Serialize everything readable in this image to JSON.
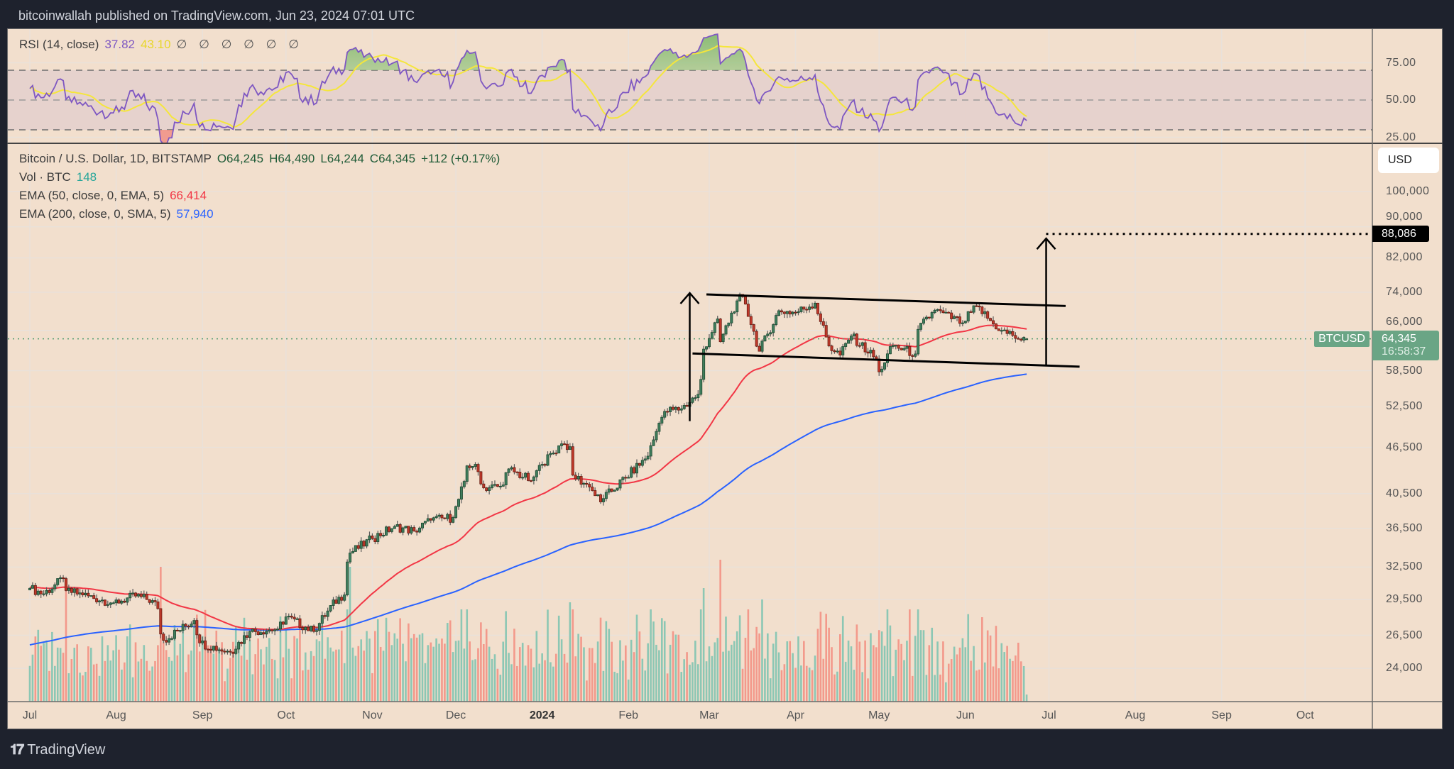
{
  "header": {
    "title": "bitcoinwallah published on TradingView.com, Jun 23, 2024 07:01 UTC"
  },
  "rsi": {
    "label": "RSI (14, close)",
    "value": "37.82",
    "ma_value": "43.10",
    "placeholders": "∅ ∅ ∅ ∅ ∅ ∅",
    "ticks": [
      {
        "value": 75,
        "label": "75.00"
      },
      {
        "value": 50,
        "label": "50.00"
      },
      {
        "value": 25,
        "label": "25.00"
      }
    ],
    "bands": {
      "upper": 70,
      "middle": 50,
      "lower": 30
    },
    "colors": {
      "line": "#7e57c2",
      "ma": "#f5e63b",
      "band": "#e6d2cd",
      "overbought_fill": "#9cc38c",
      "oversold_fill": "#f08a80"
    }
  },
  "legend": {
    "symbol": "Bitcoin / U.S. Dollar, 1D, BITSTAMP",
    "open": "O64,245",
    "high": "H64,490",
    "low": "L64,244",
    "close": "C64,345",
    "change": "+112 (+0.17%)",
    "vol_label": "Vol · BTC",
    "vol_value": "148",
    "ema50_label": "EMA (50, close, 0, EMA, 5)",
    "ema50_value": "66,414",
    "ema200_label": "EMA (200, close, 0, SMA, 5)",
    "ema200_value": "57,940"
  },
  "price_axis": {
    "currency": "USD",
    "ticks": [
      {
        "value": 100000,
        "label": "100,000"
      },
      {
        "value": 90000,
        "label": "90,000"
      },
      {
        "value": 82000,
        "label": "82,000"
      },
      {
        "value": 74000,
        "label": "74,000"
      },
      {
        "value": 66000,
        "label": "66,000"
      },
      {
        "value": 58500,
        "label": "58,500"
      },
      {
        "value": 52500,
        "label": "52,500"
      },
      {
        "value": 46500,
        "label": "46,500"
      },
      {
        "value": 40500,
        "label": "40,500"
      },
      {
        "value": 36500,
        "label": "36,500"
      },
      {
        "value": 32500,
        "label": "32,500"
      },
      {
        "value": 29500,
        "label": "29,500"
      },
      {
        "value": 26500,
        "label": "26,500"
      },
      {
        "value": 24000,
        "label": "24,000"
      }
    ],
    "target_label": "88,086",
    "symbol_badge": "BTCUSD",
    "last_price": "64,345",
    "countdown": "16:58:37"
  },
  "time_axis": {
    "labels": [
      {
        "text": "Jul",
        "date": "2023-07-01"
      },
      {
        "text": "Aug",
        "date": "2023-08-01"
      },
      {
        "text": "Sep",
        "date": "2023-09-01"
      },
      {
        "text": "Oct",
        "date": "2023-10-01"
      },
      {
        "text": "Nov",
        "date": "2023-11-01"
      },
      {
        "text": "Dec",
        "date": "2023-12-01"
      },
      {
        "text": "2024",
        "date": "2024-01-01",
        "year": true
      },
      {
        "text": "Feb",
        "date": "2024-02-01"
      },
      {
        "text": "Mar",
        "date": "2024-03-01"
      },
      {
        "text": "Apr",
        "date": "2024-04-01"
      },
      {
        "text": "May",
        "date": "2024-05-01"
      },
      {
        "text": "Jun",
        "date": "2024-06-01"
      },
      {
        "text": "Jul",
        "date": "2024-07-01"
      },
      {
        "text": "Aug",
        "date": "2024-08-01"
      },
      {
        "text": "Sep",
        "date": "2024-09-01"
      },
      {
        "text": "Oct",
        "date": "2024-10-01"
      }
    ]
  },
  "footer": {
    "brand": "TradingView"
  },
  "chart_data": {
    "type": "candlestick",
    "title": "Bitcoin / U.S. Dollar, 1D, BITSTAMP",
    "y_scale": "log",
    "ylim": [
      22000,
      110000
    ],
    "xlim": [
      "2023-07-01",
      "2024-10-20"
    ],
    "grid": true,
    "colors": {
      "up": "#3f7d5c",
      "up_border": "#1f4a33",
      "down": "#c0392b",
      "down_border": "#6b1c12",
      "vol_up": "#8cc7b4",
      "vol_down": "#f3998b",
      "ema50": "#f23645",
      "ema200": "#2962ff",
      "last_price": "#4f9a6e"
    },
    "close_keypoints": [
      [
        "2023-07-01",
        30500
      ],
      [
        "2023-07-06",
        30000
      ],
      [
        "2023-07-13",
        31400
      ],
      [
        "2023-07-14",
        30300
      ],
      [
        "2023-07-20",
        29900
      ],
      [
        "2023-07-31",
        29200
      ],
      [
        "2023-08-08",
        29800
      ],
      [
        "2023-08-14",
        29400
      ],
      [
        "2023-08-16",
        28700
      ],
      [
        "2023-08-17",
        26600
      ],
      [
        "2023-08-18",
        26100
      ],
      [
        "2023-08-29",
        27700
      ],
      [
        "2023-08-31",
        25900
      ],
      [
        "2023-09-11",
        25200
      ],
      [
        "2023-09-18",
        26800
      ],
      [
        "2023-09-28",
        27000
      ],
      [
        "2023-10-01",
        28000
      ],
      [
        "2023-10-11",
        26800
      ],
      [
        "2023-10-16",
        28500
      ],
      [
        "2023-10-20",
        29700
      ],
      [
        "2023-10-22",
        29900
      ],
      [
        "2023-10-23",
        33000
      ],
      [
        "2023-10-24",
        33900
      ],
      [
        "2023-11-01",
        35400
      ],
      [
        "2023-11-09",
        36700
      ],
      [
        "2023-11-16",
        36200
      ],
      [
        "2023-11-22",
        37400
      ],
      [
        "2023-11-30",
        37700
      ],
      [
        "2023-12-04",
        42000
      ],
      [
        "2023-12-05",
        44000
      ],
      [
        "2023-12-08",
        44200
      ],
      [
        "2023-12-11",
        41200
      ],
      [
        "2023-12-17",
        41400
      ],
      [
        "2023-12-20",
        43600
      ],
      [
        "2023-12-28",
        42100
      ],
      [
        "2024-01-01",
        44200
      ],
      [
        "2024-01-08",
        47000
      ],
      [
        "2024-01-11",
        46600
      ],
      [
        "2024-01-12",
        42800
      ],
      [
        "2024-01-18",
        41300
      ],
      [
        "2024-01-22",
        39500
      ],
      [
        "2024-01-23",
        39900
      ],
      [
        "2024-01-31",
        42500
      ],
      [
        "2024-02-08",
        45300
      ],
      [
        "2024-02-12",
        50000
      ],
      [
        "2024-02-14",
        51800
      ],
      [
        "2024-02-20",
        52200
      ],
      [
        "2024-02-26",
        54500
      ],
      [
        "2024-02-27",
        57000
      ],
      [
        "2024-02-28",
        62400
      ],
      [
        "2024-03-04",
        68300
      ],
      [
        "2024-03-05",
        63800
      ],
      [
        "2024-03-11",
        72100
      ],
      [
        "2024-03-13",
        73000
      ],
      [
        "2024-03-14",
        71400
      ],
      [
        "2024-03-19",
        62000
      ],
      [
        "2024-03-26",
        70000
      ],
      [
        "2024-04-01",
        69600
      ],
      [
        "2024-04-08",
        71600
      ],
      [
        "2024-04-13",
        63000
      ],
      [
        "2024-04-17",
        61300
      ],
      [
        "2024-04-21",
        64900
      ],
      [
        "2024-04-30",
        60600
      ],
      [
        "2024-05-01",
        58300
      ],
      [
        "2024-05-06",
        63100
      ],
      [
        "2024-05-14",
        61500
      ],
      [
        "2024-05-15",
        66200
      ],
      [
        "2024-05-21",
        70100
      ],
      [
        "2024-05-31",
        67500
      ],
      [
        "2024-06-05",
        71000
      ],
      [
        "2024-06-11",
        67300
      ],
      [
        "2024-06-14",
        66000
      ],
      [
        "2024-06-18",
        65000
      ],
      [
        "2024-06-21",
        64100
      ],
      [
        "2024-06-23",
        64345
      ]
    ],
    "last_candle": {
      "date": "2024-06-23",
      "open": 64245,
      "high": 64490,
      "low": 64244,
      "close": 64345,
      "volume": 148
    },
    "volume_spikes": [
      [
        "2023-07-14",
        0.85
      ],
      [
        "2023-08-17",
        0.95
      ],
      [
        "2023-10-24",
        0.95
      ],
      [
        "2024-01-11",
        0.7
      ],
      [
        "2024-02-28",
        0.8
      ],
      [
        "2024-03-05",
        1.0
      ],
      [
        "2024-03-20",
        0.72
      ]
    ],
    "ema_seed": {
      "ema50": 30600,
      "ema200": 25700
    },
    "rsi_seed": {
      "avg_gain": 0.0075,
      "avg_loss": 0.0055
    },
    "annotations": {
      "channel_upper": [
        [
          "2024-02-29",
          73500
        ],
        [
          "2024-07-07",
          71000
        ]
      ],
      "channel_lower": [
        [
          "2024-02-24",
          61600
        ],
        [
          "2024-07-12",
          59200
        ]
      ],
      "arrow_left": [
        [
          "2024-02-23",
          50300
        ],
        [
          "2024-02-23",
          73800
        ]
      ],
      "arrow_right": [
        [
          "2024-06-30",
          59500
        ],
        [
          "2024-06-30",
          86900
        ]
      ],
      "target_line": {
        "from": "2024-06-30",
        "price": 88086
      }
    }
  }
}
